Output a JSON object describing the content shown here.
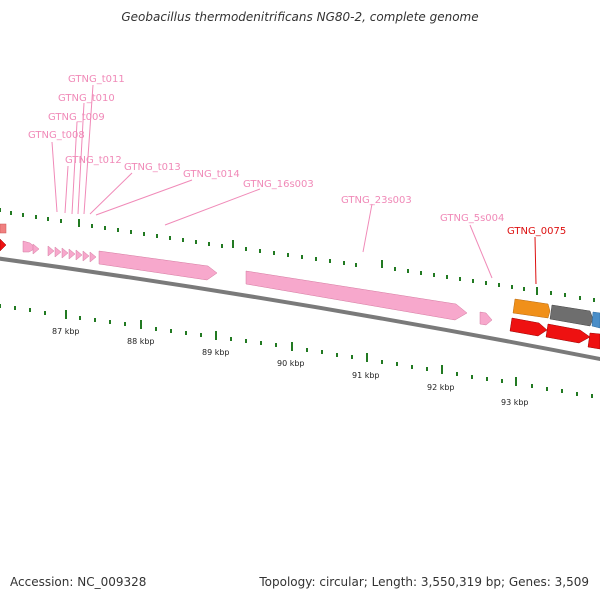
{
  "title": "Geobacillus thermodenitrificans NG80-2, complete genome",
  "footer": {
    "accession": "Accession: NC_009328",
    "stats": "Topology: circular; Length: 3,550,319 bp; Genes: 3,509"
  },
  "colors": {
    "backbone": "#7a7a7a",
    "rrna": "#f7a8cc",
    "trna": "#f7a8cc",
    "cds_red": "#ee1111",
    "cds_orange": "#f0901a",
    "cds_gray": "#6e6e6e",
    "cds_blue": "#4a8ec8",
    "gene_label": "#f08ab8",
    "highlight_label": "#dd1111",
    "ticks": "#227a22"
  },
  "ruler_labels": [
    "87 kbp",
    "88 kbp",
    "89 kbp",
    "90 kbp",
    "91 kbp",
    "92 kbp",
    "93 kbp"
  ],
  "gene_labels": [
    {
      "name": "trna-label-gtng-t011",
      "text": "GTNG_t011"
    },
    {
      "name": "trna-label-gtng-t010",
      "text": "GTNG_t010"
    },
    {
      "name": "trna-label-gtng-t009",
      "text": "GTNG_t009"
    },
    {
      "name": "trna-label-gtng-t008",
      "text": "GTNG_t008"
    },
    {
      "name": "trna-label-gtng-t012",
      "text": "GTNG_t012"
    },
    {
      "name": "trna-label-gtng-t013",
      "text": "GTNG_t013"
    },
    {
      "name": "trna-label-gtng-t014",
      "text": "GTNG_t014"
    },
    {
      "name": "rrna-label-gtng-16s003",
      "text": "GTNG_16s003"
    },
    {
      "name": "rrna-label-gtng-23s003",
      "text": "GTNG_23s003"
    },
    {
      "name": "rrna-label-gtng-5s004",
      "text": "GTNG_5s004"
    },
    {
      "name": "gene-label-gtng-0075",
      "text": "GTNG_0075"
    }
  ]
}
